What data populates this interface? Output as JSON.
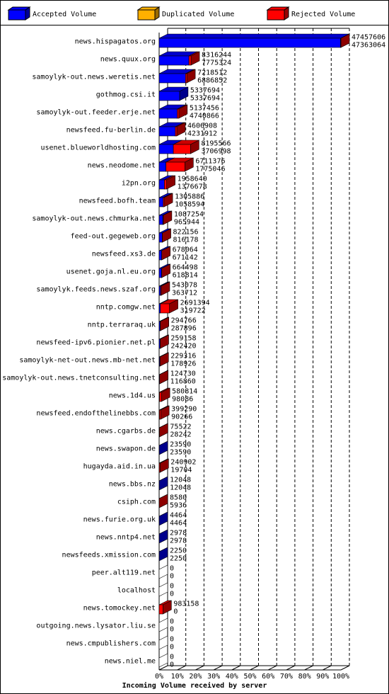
{
  "chart_data": {
    "type": "stacked-bar-3d",
    "orientation": "horizontal",
    "x_label": "Incoming Volume received by server",
    "categories": [
      "news.hispagatos.org",
      "news.quux.org",
      "samoylyk-out.news.weretis.net",
      "gothmog.csi.it",
      "samoylyk-out.feeder.erje.net",
      "newsfeed.fu-berlin.de",
      "usenet.blueworldhosting.com",
      "news.neodome.net",
      "i2pn.org",
      "newsfeed.bofh.team",
      "samoylyk-out.news.chmurka.net",
      "feed-out.gegeweb.org",
      "newsfeed.xs3.de",
      "usenet.goja.nl.eu.org",
      "samoylyk.feeds.news.szaf.org",
      "nntp.comgw.net",
      "nntp.terraraq.uk",
      "newsfeed-ipv6.pionier.net.pl",
      "samoylyk-net-out.news.mb-net.net",
      "samoylyk-out.news.tnetconsulting.net",
      "news.1d4.us",
      "newsfeed.endofthelinebbs.com",
      "news.cgarbs.de",
      "news.swapon.de",
      "hugayda.aid.in.ua",
      "news.bbs.nz",
      "csiph.com",
      "news.furie.org.uk",
      "news.nntp4.net",
      "newsfeeds.xmission.com",
      "peer.alt119.net",
      "localhost",
      "news.tomockey.net",
      "outgoing.news.lysator.liu.se",
      "news.cmpublishers.com",
      "news.niel.me"
    ],
    "totals": [
      47457606,
      8316244,
      7218512,
      5337694,
      5137456,
      4606908,
      8195566,
      6711376,
      1958640,
      1305886,
      1087254,
      822156,
      678064,
      664498,
      543078,
      2691394,
      294766,
      259158,
      229316,
      124730,
      580814,
      399290,
      75522,
      23590,
      240902,
      12048,
      8580,
      4464,
      2978,
      2250,
      0,
      0,
      983158,
      0,
      0,
      0
    ],
    "series": [
      {
        "name": "Accepted Volume",
        "color": "#0000ff",
        "values": [
          47363064,
          7775324,
          6886852,
          5337694,
          4740866,
          4231912,
          3706998,
          1775046,
          1376678,
          1058594,
          965944,
          816178,
          671142,
          618814,
          363712,
          319722,
          287896,
          242420,
          178926,
          116860,
          98086,
          90266,
          28242,
          23590,
          19704,
          12048,
          5936,
          4464,
          2978,
          2250,
          0,
          0,
          0,
          0,
          0,
          0
        ]
      },
      {
        "name": "Duplicated Volume",
        "color": "#ffb000",
        "values": [
          0,
          0,
          0,
          0,
          0,
          0,
          0,
          0,
          0,
          0,
          0,
          0,
          0,
          0,
          0,
          0,
          0,
          0,
          0,
          0,
          0,
          0,
          0,
          0,
          0,
          0,
          0,
          0,
          0,
          0,
          0,
          0,
          0,
          0,
          0,
          0
        ]
      },
      {
        "name": "Rejected Volume",
        "color": "#ff0000",
        "values": [
          94542,
          540920,
          331660,
          0,
          396590,
          374996,
          4488568,
          4936330,
          581962,
          247292,
          121310,
          5978,
          6922,
          45684,
          179366,
          2371672,
          6870,
          16738,
          50390,
          7870,
          482728,
          309024,
          47280,
          0,
          221198,
          0,
          2644,
          0,
          0,
          0,
          0,
          0,
          983158,
          0,
          0,
          0
        ]
      }
    ],
    "xlim": [
      0,
      47457606
    ],
    "xticks": [
      {
        "value": 0,
        "label": "0%"
      },
      {
        "value": 4745760.6,
        "label": "10%"
      },
      {
        "value": 9491521.2,
        "label": "20%"
      },
      {
        "value": 14237281.8,
        "label": "30%"
      },
      {
        "value": 18983042.4,
        "label": "40%"
      },
      {
        "value": 23728803,
        "label": "50%"
      },
      {
        "value": 28474563.6,
        "label": "60%"
      },
      {
        "value": 33220324.2,
        "label": "70%"
      },
      {
        "value": 37966084.8,
        "label": "80%"
      },
      {
        "value": 42711845.4,
        "label": "90%"
      },
      {
        "value": 47457606,
        "label": "100%"
      }
    ],
    "grid": true
  }
}
